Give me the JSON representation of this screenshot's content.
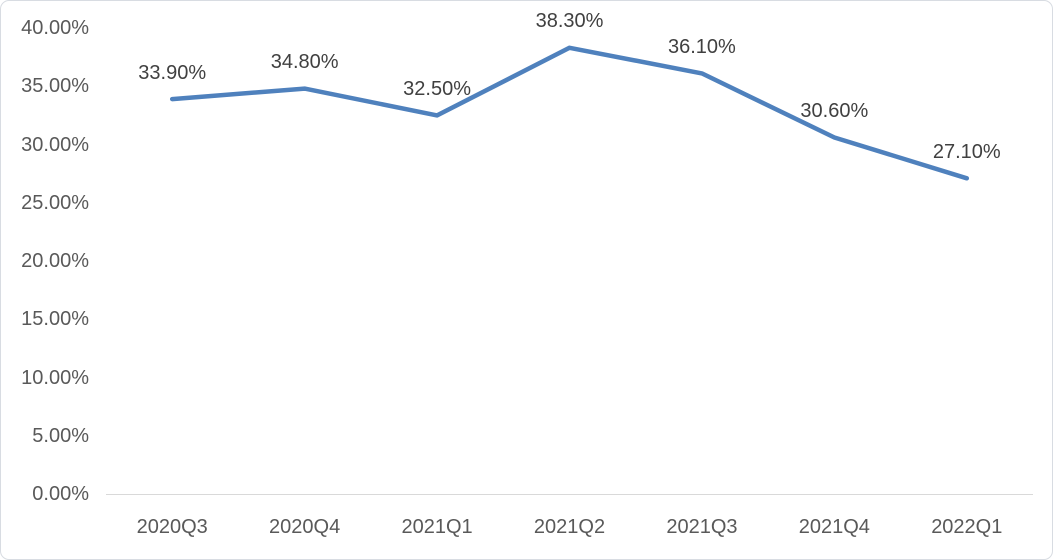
{
  "chart_data": {
    "type": "line",
    "title": "",
    "xlabel": "",
    "ylabel": "",
    "categories": [
      "2020Q3",
      "2020Q4",
      "2021Q1",
      "2021Q2",
      "2021Q3",
      "2021Q4",
      "2022Q1"
    ],
    "values": [
      33.9,
      34.8,
      32.5,
      38.3,
      36.1,
      30.6,
      27.1
    ],
    "data_labels": [
      "33.90%",
      "34.80%",
      "32.50%",
      "38.30%",
      "36.10%",
      "30.60%",
      "27.10%"
    ],
    "y_ticks": [
      "40.00%",
      "35.00%",
      "30.00%",
      "25.00%",
      "20.00%",
      "15.00%",
      "10.00%",
      "5.00%",
      "0.00%"
    ],
    "ylim": [
      0,
      40
    ],
    "grid": false,
    "legend": "none",
    "colors": {
      "line": "#4f81bd",
      "axis_line": "#d9d9d9",
      "axis_text": "#595959",
      "data_label_text": "#404040",
      "frame_border": "#d8dce2",
      "background": "#ffffff"
    }
  }
}
